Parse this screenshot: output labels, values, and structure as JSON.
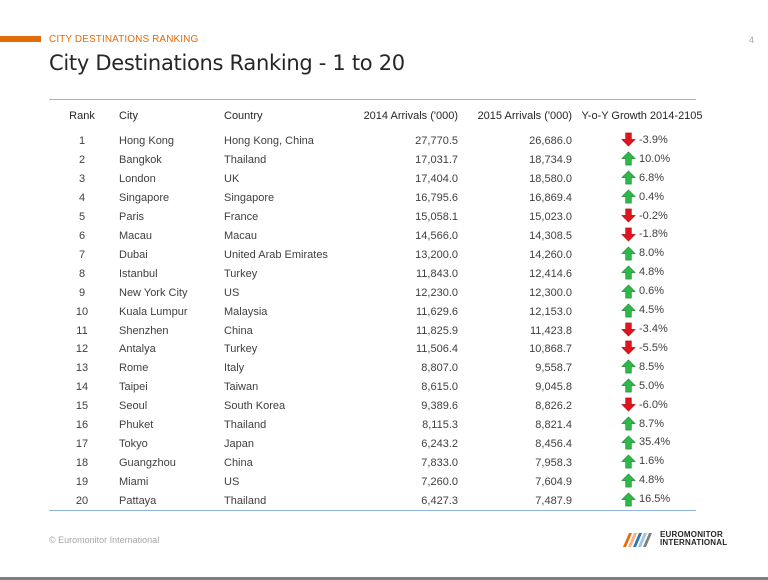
{
  "header": {
    "section_label": "CITY DESTINATIONS RANKING",
    "page_number": "4",
    "title": "City Destinations Ranking - 1 to 20"
  },
  "table": {
    "columns": [
      "Rank",
      "City",
      "Country",
      "2014 Arrivals ('000)",
      "2015 Arrivals ('000)",
      "Y-o-Y Growth 2014-2105"
    ],
    "rows": [
      {
        "rank": "1",
        "city": "Hong Kong",
        "country": "Hong Kong, China",
        "a2014": "27,770.5",
        "a2015": "26,686.0",
        "growth": "-3.9%",
        "trend": "down"
      },
      {
        "rank": "2",
        "city": "Bangkok",
        "country": "Thailand",
        "a2014": "17,031.7",
        "a2015": "18,734.9",
        "growth": "10.0%",
        "trend": "up"
      },
      {
        "rank": "3",
        "city": "London",
        "country": "UK",
        "a2014": "17,404.0",
        "a2015": "18,580.0",
        "growth": "6.8%",
        "trend": "up"
      },
      {
        "rank": "4",
        "city": "Singapore",
        "country": "Singapore",
        "a2014": "16,795.6",
        "a2015": "16,869.4",
        "growth": "0.4%",
        "trend": "up"
      },
      {
        "rank": "5",
        "city": "Paris",
        "country": "France",
        "a2014": "15,058.1",
        "a2015": "15,023.0",
        "growth": "-0.2%",
        "trend": "down"
      },
      {
        "rank": "6",
        "city": "Macau",
        "country": "Macau",
        "a2014": "14,566.0",
        "a2015": "14,308.5",
        "growth": "-1.8%",
        "trend": "down"
      },
      {
        "rank": "7",
        "city": "Dubai",
        "country": "United Arab Emirates",
        "a2014": "13,200.0",
        "a2015": "14,260.0",
        "growth": "8.0%",
        "trend": "up"
      },
      {
        "rank": "8",
        "city": "Istanbul",
        "country": "Turkey",
        "a2014": "11,843.0",
        "a2015": "12,414.6",
        "growth": "4.8%",
        "trend": "up"
      },
      {
        "rank": "9",
        "city": "New York City",
        "country": "US",
        "a2014": "12,230.0",
        "a2015": "12,300.0",
        "growth": "0.6%",
        "trend": "up"
      },
      {
        "rank": "10",
        "city": "Kuala Lumpur",
        "country": "Malaysia",
        "a2014": "11,629.6",
        "a2015": "12,153.0",
        "growth": "4.5%",
        "trend": "up"
      },
      {
        "rank": "11",
        "city": "Shenzhen",
        "country": "China",
        "a2014": "11,825.9",
        "a2015": "11,423.8",
        "growth": "-3.4%",
        "trend": "down"
      },
      {
        "rank": "12",
        "city": "Antalya",
        "country": "Turkey",
        "a2014": "11,506.4",
        "a2015": "10,868.7",
        "growth": "-5.5%",
        "trend": "down"
      },
      {
        "rank": "13",
        "city": "Rome",
        "country": "Italy",
        "a2014": "8,807.0",
        "a2015": "9,558.7",
        "growth": "8.5%",
        "trend": "up"
      },
      {
        "rank": "14",
        "city": "Taipei",
        "country": "Taiwan",
        "a2014": "8,615.0",
        "a2015": "9,045.8",
        "growth": "5.0%",
        "trend": "up"
      },
      {
        "rank": "15",
        "city": "Seoul",
        "country": "South Korea",
        "a2014": "9,389.6",
        "a2015": "8,826.2",
        "growth": "-6.0%",
        "trend": "down"
      },
      {
        "rank": "16",
        "city": "Phuket",
        "country": "Thailand",
        "a2014": "8,115.3",
        "a2015": "8,821.4",
        "growth": "8.7%",
        "trend": "up"
      },
      {
        "rank": "17",
        "city": "Tokyo",
        "country": "Japan",
        "a2014": "6,243.2",
        "a2015": "8,456.4",
        "growth": "35.4%",
        "trend": "up"
      },
      {
        "rank": "18",
        "city": "Guangzhou",
        "country": "China",
        "a2014": "7,833.0",
        "a2015": "7,958.3",
        "growth": "1.6%",
        "trend": "up"
      },
      {
        "rank": "19",
        "city": "Miami",
        "country": "US",
        "a2014": "7,260.0",
        "a2015": "7,604.9",
        "growth": "4.8%",
        "trend": "up"
      },
      {
        "rank": "20",
        "city": "Pattaya",
        "country": "Thailand",
        "a2014": "6,427.3",
        "a2015": "7,487.9",
        "growth": "16.5%",
        "trend": "up"
      }
    ]
  },
  "icons": {
    "up": "green-up-arrow-icon",
    "down": "red-down-arrow-icon"
  },
  "colors": {
    "accent": "#e36c0a",
    "up": "#2fb84a",
    "down": "#e0141e",
    "rule": "#8eb4e3"
  },
  "footer": {
    "copyright": "© Euromonitor International",
    "logo_line1": "EUROMONITOR",
    "logo_line2": "INTERNATIONAL"
  }
}
